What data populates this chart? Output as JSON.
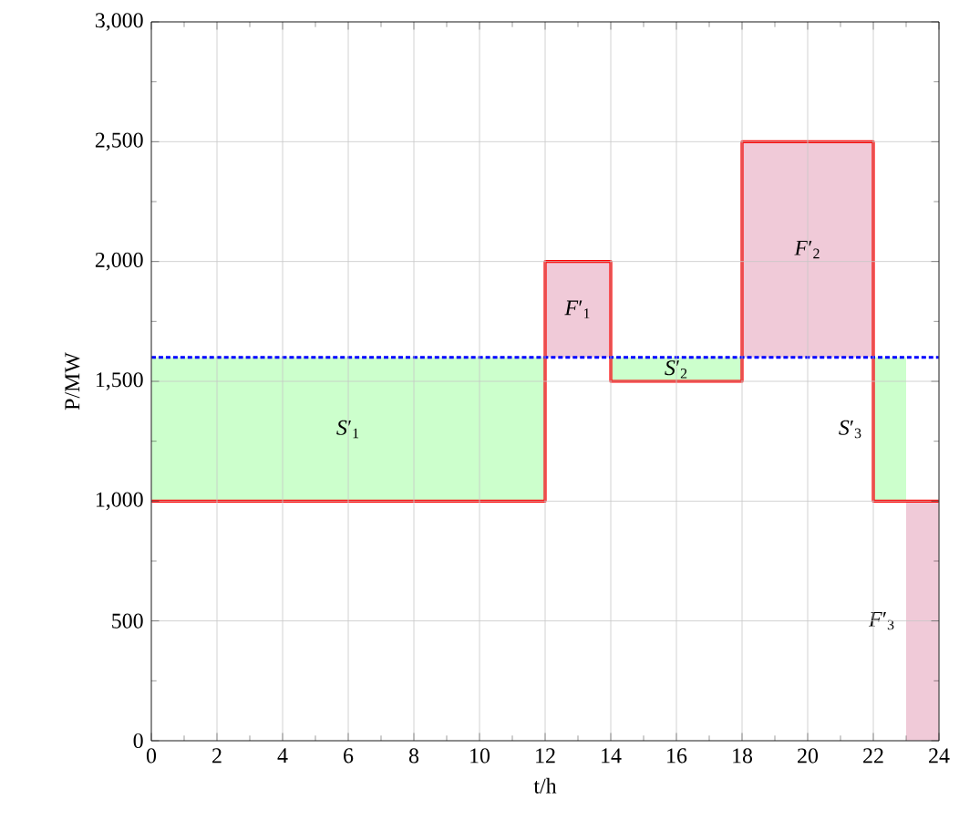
{
  "chart_data": {
    "type": "step",
    "xlabel": "t/h",
    "ylabel": "P/MW",
    "xlim": [
      0,
      24
    ],
    "xticks": [
      0,
      2,
      4,
      6,
      8,
      10,
      12,
      14,
      16,
      18,
      20,
      22,
      24
    ],
    "ylim": [
      0,
      3000
    ],
    "yticks": [
      0,
      500,
      {
        "value": 1000,
        "label": "1,000"
      },
      {
        "value": 1500,
        "label": "1,500"
      },
      {
        "value": 2000,
        "label": "2,000"
      },
      {
        "value": 2500,
        "label": "2,500"
      },
      {
        "value": 3000,
        "label": "3,000"
      }
    ],
    "grid": true,
    "series": [
      {
        "type": "histogram",
        "bins": [
          0,
          12,
          14,
          18,
          22,
          23,
          24
        ],
        "base": [
          1000,
          1600,
          1500,
          1600,
          1000,
          0
        ],
        "values": [
          600,
          400,
          100,
          900,
          600,
          1000
        ],
        "colors": [
          "#ccffcc",
          "#f0cad8",
          "#ccffcc",
          "#f0cad8",
          "#ccffcc",
          "#f0cad8"
        ]
      },
      {
        "color": "#ff0000",
        "x": [
          0,
          12,
          14,
          18,
          22,
          24
        ],
        "values": [
          1000,
          2000,
          1500,
          2500,
          1000,
          1000
        ]
      }
    ],
    "ref_lines": [
      {
        "axis": "y",
        "value": 1600,
        "color": "#0000ff",
        "line_style": "dotted"
      }
    ],
    "annotations": [
      "*S*′$_{1}$",
      "*F*′$_{1}$",
      "*S*′$_{2}$",
      "*F*′$_{2}$",
      "*S*′$_{3}$",
      "*F*′$_{3}$"
    ]
  }
}
